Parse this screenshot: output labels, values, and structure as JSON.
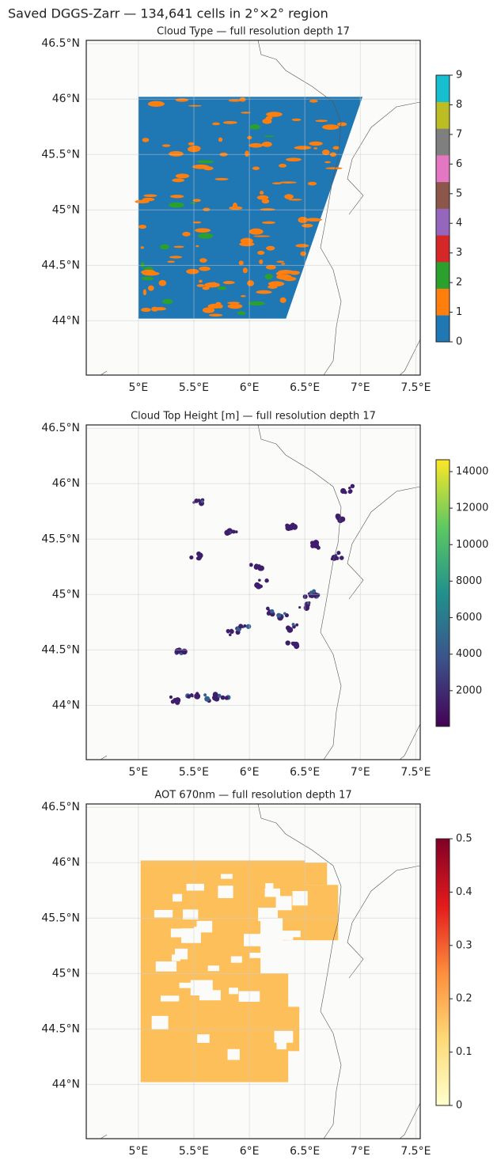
{
  "title": "Saved DGGS-Zarr — 134,641 cells in 2°×2° region",
  "chart_data": [
    {
      "type": "map",
      "title": "Cloud Type — full resolution depth 17",
      "xlim": [
        4.53,
        7.54
      ],
      "ylim": [
        43.51,
        46.53
      ],
      "xticks": [
        {
          "value": 5,
          "label": "5°E"
        },
        {
          "value": 5.5,
          "label": "5.5°E"
        },
        {
          "value": 6,
          "label": "6°E"
        },
        {
          "value": 6.5,
          "label": "6.5°E"
        },
        {
          "value": 7,
          "label": "7°E"
        },
        {
          "value": 7.5,
          "label": "7.5°E"
        }
      ],
      "yticks": [
        {
          "value": 44,
          "label": "44°N"
        },
        {
          "value": 44.5,
          "label": "44.5°N"
        },
        {
          "value": 45,
          "label": "45°N"
        },
        {
          "value": 45.5,
          "label": "45.5°N"
        },
        {
          "value": 46,
          "label": "46°N"
        },
        {
          "value": 46.5,
          "label": "46.5°N"
        }
      ],
      "grid": true,
      "colorbar": {
        "lim": [
          0,
          9
        ],
        "ticks": [
          0,
          1,
          2,
          3,
          4,
          5,
          6,
          7,
          8,
          9
        ],
        "discrete": true,
        "colors": [
          "#1f77b4",
          "#ff7f0e",
          "#2ca02c",
          "#d62728",
          "#9467bd",
          "#8c564b",
          "#e377c2",
          "#7f7f7f",
          "#bcbd22",
          "#17becf"
        ]
      }
    },
    {
      "type": "map",
      "title": "Cloud Top Height [m] — full resolution depth 17",
      "xlim": [
        4.53,
        7.54
      ],
      "ylim": [
        43.51,
        46.53
      ],
      "xticks": [
        {
          "value": 5,
          "label": "5°E"
        },
        {
          "value": 5.5,
          "label": "5.5°E"
        },
        {
          "value": 6,
          "label": "6°E"
        },
        {
          "value": 6.5,
          "label": "6.5°E"
        },
        {
          "value": 7,
          "label": "7°E"
        },
        {
          "value": 7.5,
          "label": "7.5°E"
        }
      ],
      "yticks": [
        {
          "value": 44,
          "label": "44°N"
        },
        {
          "value": 44.5,
          "label": "44.5°N"
        },
        {
          "value": 45,
          "label": "45°N"
        },
        {
          "value": 45.5,
          "label": "45.5°N"
        },
        {
          "value": 46,
          "label": "46°N"
        },
        {
          "value": 46.5,
          "label": "46.5°N"
        }
      ],
      "grid": true,
      "colorbar": {
        "lim": [
          43,
          14650
        ],
        "ticks": [
          2000,
          4000,
          6000,
          8000,
          10000,
          12000,
          14000
        ],
        "discrete": false,
        "colors": [
          "#440154",
          "#3b528b",
          "#21918c",
          "#5ec962",
          "#fde725"
        ]
      }
    },
    {
      "type": "map",
      "title": "AOT 670nm — full resolution depth 17",
      "xlim": [
        4.53,
        7.54
      ],
      "ylim": [
        43.51,
        46.53
      ],
      "xticks": [
        {
          "value": 5,
          "label": "5°E"
        },
        {
          "value": 5.5,
          "label": "5.5°E"
        },
        {
          "value": 6,
          "label": "6°E"
        },
        {
          "value": 6.5,
          "label": "6.5°E"
        },
        {
          "value": 7,
          "label": "7°E"
        },
        {
          "value": 7.5,
          "label": "7.5°E"
        }
      ],
      "yticks": [
        {
          "value": 44,
          "label": "44°N"
        },
        {
          "value": 44.5,
          "label": "44.5°N"
        },
        {
          "value": 45,
          "label": "45°N"
        },
        {
          "value": 45.5,
          "label": "45.5°N"
        },
        {
          "value": 46,
          "label": "46°N"
        },
        {
          "value": 46.5,
          "label": "46.5°N"
        }
      ],
      "grid": true,
      "colorbar": {
        "lim": [
          0,
          0.5
        ],
        "ticks": [
          0,
          0.1,
          0.2,
          0.3,
          0.4,
          0.5
        ],
        "discrete": false,
        "colors": [
          "#ffffcc",
          "#fed976",
          "#fd8d3c",
          "#e31a1c",
          "#800026"
        ]
      }
    }
  ]
}
